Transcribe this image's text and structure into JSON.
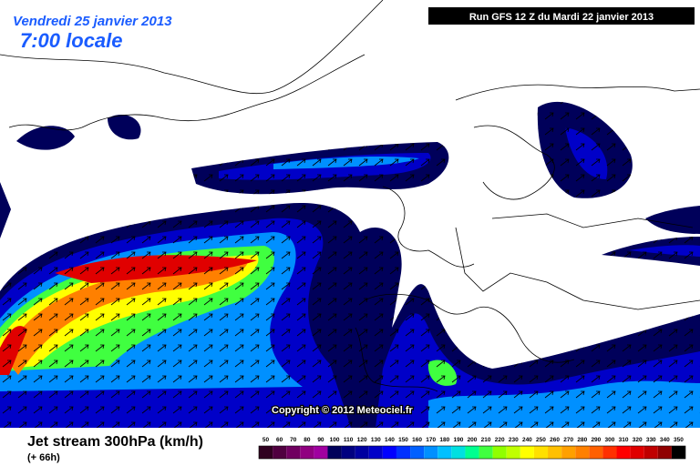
{
  "header": {
    "date": "Vendredi 25 janvier 2013",
    "time": "7:00 locale",
    "run": "Run GFS 12 Z du Mardi 22 janvier 2013"
  },
  "copyright": "Copyright © 2012 Meteociel.fr",
  "footer": {
    "title": "Jet stream 300hPa (km/h)",
    "lead": "(+ 66h)"
  },
  "legend": {
    "labels": [
      50,
      60,
      70,
      80,
      90,
      100,
      110,
      120,
      130,
      140,
      150,
      160,
      170,
      180,
      190,
      200,
      210,
      220,
      230,
      240,
      250,
      260,
      270,
      280,
      290,
      300,
      310,
      320,
      330,
      340,
      350
    ],
    "colors": [
      "#300020",
      "#500040",
      "#700060",
      "#900080",
      "#a000a0",
      "#00005a",
      "#000080",
      "#0000a0",
      "#0000c8",
      "#0000ff",
      "#0030ff",
      "#0060ff",
      "#0090ff",
      "#00c0ff",
      "#00e0e0",
      "#00ff90",
      "#40ff40",
      "#90ff00",
      "#c0ff00",
      "#ffff00",
      "#ffe000",
      "#ffc000",
      "#ffa000",
      "#ff8000",
      "#ff6000",
      "#ff3000",
      "#ff0000",
      "#e00000",
      "#c00000",
      "#900000",
      "#000000"
    ]
  }
}
